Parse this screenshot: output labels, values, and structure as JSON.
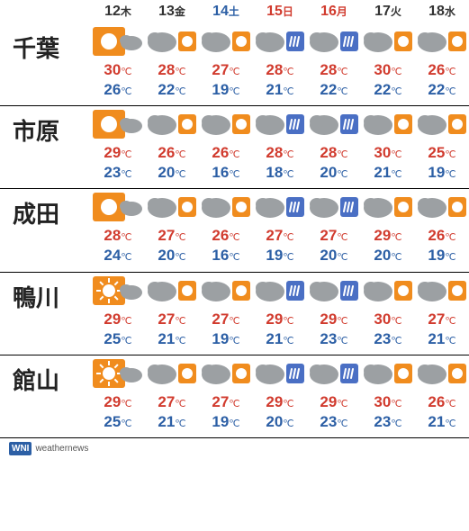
{
  "colors": {
    "weekday": "#333333",
    "saturday": "#2c5fa5",
    "sunday_holiday": "#d13b2e",
    "high_temp": "#d13b2e",
    "low_temp": "#2c5fa5",
    "city": "#222222",
    "divider": "#000000",
    "sun": "#f08c1e",
    "cloud": "#9ca0a3",
    "rain": "#4a6fc4"
  },
  "days": [
    {
      "num": "12",
      "dow": "木",
      "type": "weekday"
    },
    {
      "num": "13",
      "dow": "金",
      "type": "weekday"
    },
    {
      "num": "14",
      "dow": "土",
      "type": "saturday"
    },
    {
      "num": "15",
      "dow": "日",
      "type": "sunday_holiday"
    },
    {
      "num": "16",
      "dow": "月",
      "type": "sunday_holiday"
    },
    {
      "num": "17",
      "dow": "火",
      "type": "weekday"
    },
    {
      "num": "18",
      "dow": "水",
      "type": "weekday"
    }
  ],
  "cities": [
    {
      "name": "千葉",
      "forecast": [
        {
          "icon": "sun_cloud",
          "high": 30,
          "low": 26
        },
        {
          "icon": "cloud_sun",
          "high": 28,
          "low": 22
        },
        {
          "icon": "cloud_sun",
          "high": 27,
          "low": 19
        },
        {
          "icon": "cloud_rain",
          "high": 28,
          "low": 21
        },
        {
          "icon": "cloud_rain",
          "high": 28,
          "low": 22
        },
        {
          "icon": "cloud_sun",
          "high": 30,
          "low": 22
        },
        {
          "icon": "cloud_sun",
          "high": 26,
          "low": 22
        }
      ]
    },
    {
      "name": "市原",
      "forecast": [
        {
          "icon": "sun_cloud",
          "high": 29,
          "low": 23
        },
        {
          "icon": "cloud_sun",
          "high": 26,
          "low": 20
        },
        {
          "icon": "cloud_sun",
          "high": 26,
          "low": 16
        },
        {
          "icon": "cloud_rain",
          "high": 28,
          "low": 18
        },
        {
          "icon": "cloud_rain",
          "high": 28,
          "low": 20
        },
        {
          "icon": "cloud_sun",
          "high": 30,
          "low": 21
        },
        {
          "icon": "cloud_sun",
          "high": 25,
          "low": 19
        }
      ]
    },
    {
      "name": "成田",
      "forecast": [
        {
          "icon": "sun_cloud",
          "high": 28,
          "low": 24
        },
        {
          "icon": "cloud_sun",
          "high": 27,
          "low": 20
        },
        {
          "icon": "cloud_sun",
          "high": 26,
          "low": 16
        },
        {
          "icon": "cloud_rain",
          "high": 27,
          "low": 19
        },
        {
          "icon": "cloud_rain",
          "high": 27,
          "low": 20
        },
        {
          "icon": "cloud_sun",
          "high": 29,
          "low": 20
        },
        {
          "icon": "cloud_sun",
          "high": 26,
          "low": 19
        }
      ]
    },
    {
      "name": "鴨川",
      "forecast": [
        {
          "icon": "sunray_cloud",
          "high": 29,
          "low": 25
        },
        {
          "icon": "cloud_sun",
          "high": 27,
          "low": 21
        },
        {
          "icon": "cloud_sun",
          "high": 27,
          "low": 19
        },
        {
          "icon": "cloud_rain",
          "high": 29,
          "low": 21
        },
        {
          "icon": "cloud_rain",
          "high": 29,
          "low": 23
        },
        {
          "icon": "cloud_sun",
          "high": 30,
          "low": 23
        },
        {
          "icon": "cloud_sun",
          "high": 27,
          "low": 21
        }
      ]
    },
    {
      "name": "館山",
      "forecast": [
        {
          "icon": "sunray_cloud",
          "high": 29,
          "low": 25
        },
        {
          "icon": "cloud_sun",
          "high": 27,
          "low": 21
        },
        {
          "icon": "cloud_sun",
          "high": 27,
          "low": 19
        },
        {
          "icon": "cloud_rain",
          "high": 29,
          "low": 20
        },
        {
          "icon": "cloud_rain",
          "high": 29,
          "low": 23
        },
        {
          "icon": "cloud_sun",
          "high": 30,
          "low": 23
        },
        {
          "icon": "cloud_sun",
          "high": 26,
          "low": 21
        }
      ]
    }
  ],
  "footer": {
    "badge": "WNI",
    "text": "weathernews"
  },
  "icon_defs": {
    "sun_cloud": "sun-big-cloud-small",
    "sunray_cloud": "sunrays-cloud-small",
    "cloud_sun": "cloud-big-sun-small",
    "cloud_rain": "cloud-big-rain-small"
  }
}
